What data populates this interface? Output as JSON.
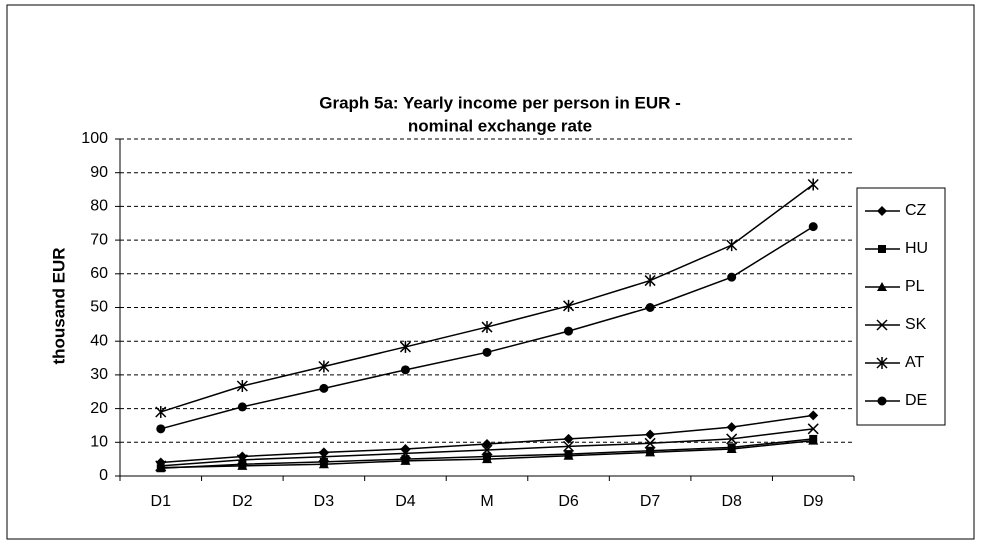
{
  "chart_data": {
    "type": "line",
    "title": [
      "Graph 5a: Yearly income per person in EUR -",
      "nominal exchange rate"
    ],
    "y_label": "thousand EUR",
    "categories": [
      "D1",
      "D2",
      "D3",
      "D4",
      "M",
      "D6",
      "D7",
      "D8",
      "D9"
    ],
    "ylim": [
      0,
      100
    ],
    "yticks": [
      0,
      10,
      20,
      30,
      40,
      50,
      60,
      70,
      80,
      90,
      100
    ],
    "grid": true,
    "legend": "right",
    "series": [
      {
        "name": "CZ",
        "color": "#000000",
        "marker": "diamond",
        "values": [
          4,
          5.8,
          7,
          8,
          9.5,
          11,
          12.3,
          14.5,
          18
        ]
      },
      {
        "name": "HU",
        "color": "#000000",
        "marker": "square",
        "values": [
          2.3,
          3.5,
          4.2,
          5,
          5.8,
          6.5,
          7.5,
          8.5,
          11
        ]
      },
      {
        "name": "PL",
        "color": "#000000",
        "marker": "triangle",
        "values": [
          2.5,
          3,
          3.5,
          4.5,
          5,
          6,
          7,
          8,
          10.5
        ]
      },
      {
        "name": "SK",
        "color": "#000000",
        "marker": "x",
        "values": [
          3,
          4.8,
          5.7,
          6.7,
          7.7,
          8.8,
          9.7,
          11,
          14
        ]
      },
      {
        "name": "AT",
        "color": "#000000",
        "marker": "star",
        "values": [
          19,
          26.7,
          32.5,
          38.3,
          44.2,
          50.5,
          58,
          68.5,
          86.5
        ]
      },
      {
        "name": "DE",
        "color": "#000000",
        "marker": "circle",
        "values": [
          14,
          20.5,
          26,
          31.5,
          36.7,
          43,
          50,
          59,
          74
        ]
      }
    ]
  }
}
